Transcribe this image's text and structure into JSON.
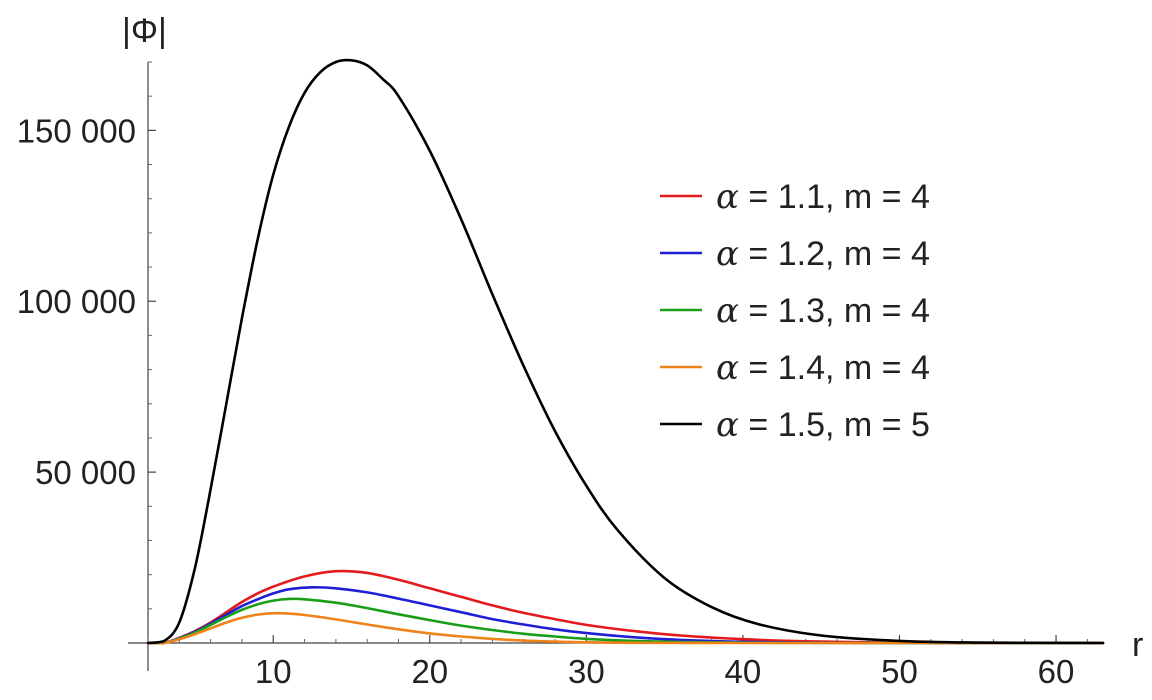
{
  "chart_data": {
    "type": "line",
    "title": "",
    "xlabel": "r",
    "ylabel": "|Φ|",
    "xlim": [
      2,
      63
    ],
    "ylim": [
      0,
      170000
    ],
    "x_ticks": [
      10,
      20,
      30,
      40,
      50,
      60
    ],
    "x_tick_labels": [
      "10",
      "20",
      "30",
      "40",
      "50",
      "60"
    ],
    "y_ticks": [
      50000,
      100000,
      150000
    ],
    "y_tick_labels": [
      "50 000",
      "100 000",
      "150 000"
    ],
    "grid": false,
    "legend_position": "top-right",
    "series": [
      {
        "name": "α = 1.1,  m = 4",
        "alpha_label": "α",
        "rest_label": " = 1.1,  m = 4",
        "color": "#e41a1c",
        "x": [
          2,
          3,
          4,
          5,
          6,
          7,
          8,
          9,
          10,
          12,
          14,
          16,
          18,
          20,
          22,
          24,
          26,
          28,
          30,
          33,
          36,
          40,
          45,
          50,
          55,
          63
        ],
        "y": [
          0,
          0,
          1500,
          3500,
          6000,
          9000,
          12000,
          14500,
          16500,
          19500,
          21000,
          20500,
          18500,
          16000,
          13500,
          11000,
          8800,
          7000,
          5300,
          3500,
          2200,
          1100,
          400,
          120,
          30,
          0
        ]
      },
      {
        "name": "α = 1.2,  m = 4",
        "alpha_label": "α",
        "rest_label": " = 1.2,  m = 4",
        "color": "#1f1fd6",
        "x": [
          2,
          3,
          4,
          5,
          6,
          7,
          8,
          9,
          10,
          11,
          12.5,
          14,
          16,
          18,
          20,
          22,
          24,
          26,
          28,
          30,
          33,
          36,
          40,
          45,
          50,
          63
        ],
        "y": [
          0,
          0,
          1400,
          3300,
          5700,
          8300,
          10800,
          12800,
          14500,
          15700,
          16300,
          16000,
          14800,
          13000,
          11000,
          9000,
          7000,
          5400,
          4000,
          2900,
          1700,
          900,
          350,
          80,
          15,
          0
        ]
      },
      {
        "name": "α = 1.3,  m = 4",
        "alpha_label": "α",
        "rest_label": " = 1.3,  m = 4",
        "color": "#1a9e1a",
        "x": [
          2,
          3,
          4,
          5,
          6,
          7,
          8,
          9,
          10,
          11,
          12,
          14,
          16,
          18,
          20,
          22,
          24,
          26,
          28,
          30,
          33,
          36,
          40,
          45,
          63
        ],
        "y": [
          0,
          0,
          1300,
          3100,
          5300,
          7600,
          9700,
          11300,
          12400,
          12900,
          12800,
          11800,
          10200,
          8400,
          6700,
          5100,
          3800,
          2700,
          1900,
          1200,
          600,
          280,
          80,
          10,
          0
        ]
      },
      {
        "name": "α = 1.4,  m = 4",
        "alpha_label": "α",
        "rest_label": " = 1.4,  m = 4",
        "color": "#f0821a",
        "x": [
          2,
          3,
          4,
          5,
          6,
          7,
          8,
          9,
          10,
          11,
          12,
          14,
          16,
          18,
          20,
          22,
          24,
          26,
          28,
          30,
          33,
          36,
          40,
          63
        ],
        "y": [
          0,
          0,
          1100,
          2600,
          4300,
          6000,
          7400,
          8300,
          8700,
          8600,
          8200,
          6900,
          5400,
          4000,
          2800,
          1900,
          1200,
          700,
          400,
          200,
          70,
          20,
          0,
          0
        ]
      },
      {
        "name": "α = 1.5,  m = 5",
        "alpha_label": "α",
        "rest_label": " = 1.5,  m = 5",
        "color": "#000000",
        "x": [
          2,
          3,
          4,
          5,
          6,
          7,
          8,
          9,
          10,
          11,
          12,
          13,
          14,
          15,
          16,
          17,
          18,
          20,
          22,
          24,
          26,
          28,
          30,
          32,
          35,
          38,
          41,
          45,
          50,
          55,
          63
        ],
        "y": [
          0,
          500,
          6000,
          22000,
          45000,
          70000,
          95000,
          118000,
          137000,
          151000,
          161000,
          167000,
          170000,
          170500,
          169000,
          165000,
          160000,
          144000,
          124000,
          102000,
          81000,
          62000,
          46000,
          33000,
          19000,
          10500,
          5500,
          2200,
          600,
          120,
          0
        ]
      }
    ]
  }
}
